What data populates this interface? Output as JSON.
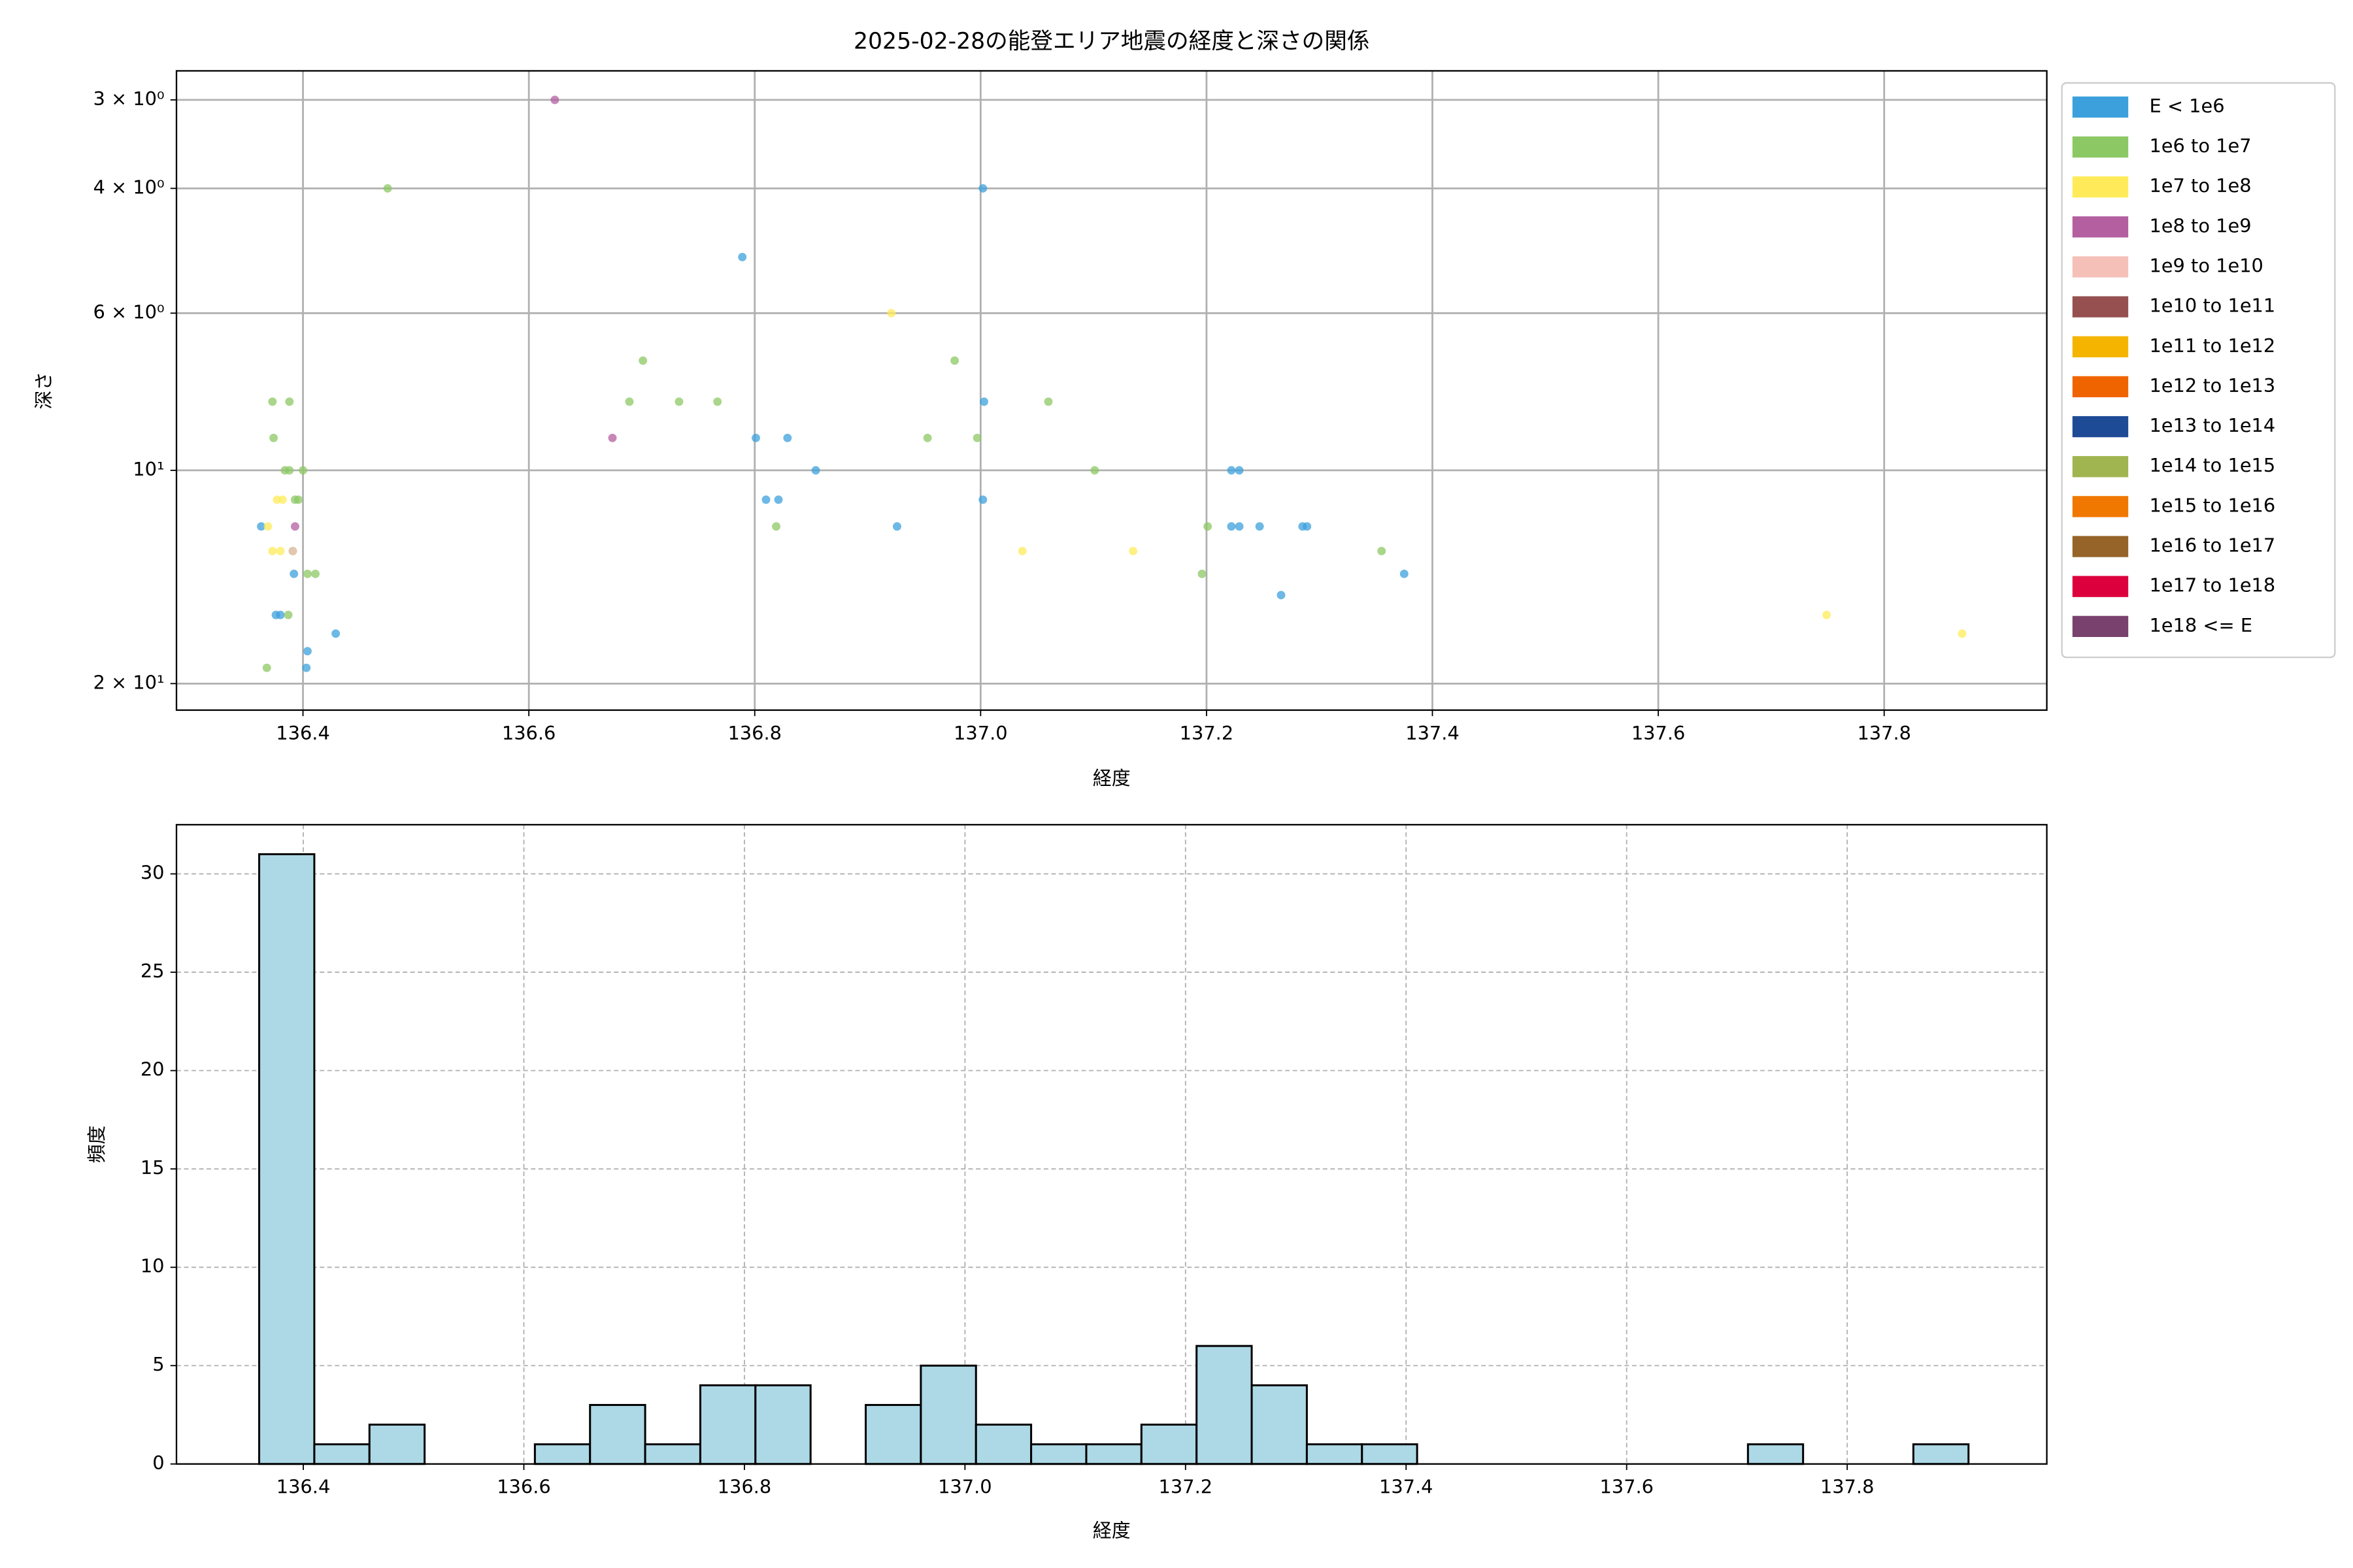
{
  "chart_data": [
    {
      "type": "scatter",
      "title": "2025-02-28の能登エリア地震の経度と深さの関係",
      "xlabel": "経度",
      "ylabel": "深さ",
      "xlim": [
        136.288,
        137.944
      ],
      "xticks": [
        136.4,
        136.6,
        136.8,
        {
          "value": 137,
          "label": "137.0"
        },
        137.2,
        137.4,
        137.6,
        137.8
      ],
      "yscale": "log",
      "ylim": [
        21.8,
        2.73
      ],
      "yticks": [
        {
          "value": 3,
          "label": "3 × 10⁰"
        },
        {
          "value": 4,
          "label": "4 × 10⁰"
        },
        {
          "value": 6,
          "label": "6 × 10⁰"
        },
        {
          "value": 10,
          "label": "10¹"
        },
        {
          "value": 20,
          "label": "2 × 10¹"
        }
      ],
      "grid": true,
      "grid_style": "solid",
      "legend": "outside right",
      "series": [
        {
          "name": "E < 1e6",
          "color": "#3ca0dc",
          "x": [
            136.363,
            136.392,
            136.376,
            136.38,
            136.404,
            136.403,
            136.429,
            136.789,
            136.801,
            136.829,
            136.81,
            136.821,
            136.854,
            136.926,
            137.002,
            137.003,
            137.002,
            137.222,
            137.229,
            137.222,
            137.229,
            137.247,
            137.285,
            137.289,
            137.266,
            137.375
          ],
          "values": [
            12,
            14,
            16,
            16,
            18,
            19,
            17,
            5,
            9,
            9,
            11,
            11,
            10,
            12,
            4,
            8,
            11,
            10,
            10,
            12,
            12,
            12,
            12,
            12,
            15,
            14
          ]
        },
        {
          "name": "1e6 to 1e7",
          "color": "#8cc864",
          "x": [
            136.475,
            136.373,
            136.388,
            136.374,
            136.384,
            136.388,
            136.4,
            136.393,
            136.396,
            136.368,
            136.387,
            136.404,
            136.411,
            136.391,
            136.701,
            136.689,
            136.733,
            136.767,
            136.819,
            136.953,
            136.977,
            136.997,
            137.06,
            137.101,
            137.201,
            137.196,
            137.355
          ],
          "values": [
            4,
            8,
            8,
            9,
            10,
            10,
            10,
            11,
            11,
            19,
            16,
            14,
            14,
            13,
            7,
            8,
            8,
            8,
            12,
            9,
            7,
            9,
            8,
            10,
            12,
            14,
            13
          ]
        },
        {
          "name": "1e7 to 1e8",
          "color": "#ffeb5a",
          "x": [
            136.369,
            136.373,
            136.38,
            136.377,
            136.382,
            136.921,
            137.037,
            137.135,
            137.749,
            137.869
          ],
          "values": [
            12,
            13,
            13,
            11,
            11,
            6,
            13,
            13,
            16,
            17
          ]
        },
        {
          "name": "1e8 to 1e9",
          "color": "#b45fa0",
          "x": [
            136.623,
            136.674,
            136.393
          ],
          "values": [
            3,
            9,
            12
          ]
        },
        {
          "name": "1e9 to 1e10",
          "color": "#f5c0b8",
          "x": [
            136.391
          ],
          "values": [
            13
          ]
        },
        {
          "name": "1e10 to 1e11",
          "color": "#965050",
          "x": [],
          "values": []
        },
        {
          "name": "1e11 to 1e12",
          "color": "#f5b400",
          "x": [],
          "values": []
        },
        {
          "name": "1e12 to 1e13",
          "color": "#f06400",
          "x": [],
          "values": []
        },
        {
          "name": "1e13 to 1e14",
          "color": "#1e4b96",
          "x": [],
          "values": []
        },
        {
          "name": "1e14 to 1e15",
          "color": "#a0b450",
          "x": [],
          "values": []
        },
        {
          "name": "1e15 to 1e16",
          "color": "#f07800",
          "x": [],
          "values": []
        },
        {
          "name": "1e16 to 1e17",
          "color": "#966428",
          "x": [],
          "values": []
        },
        {
          "name": "1e17 to 1e18",
          "color": "#dc003c",
          "x": [],
          "values": []
        },
        {
          "name": "1e18 <= E",
          "color": "#78416e",
          "x": [],
          "values": []
        }
      ]
    },
    {
      "type": "histogram",
      "xlabel": "経度",
      "ylabel": "頻度",
      "color": "#add8e6",
      "edgecolor": "#000000",
      "bins": [
        136.36,
        136.41,
        136.46,
        136.51,
        136.56,
        136.61,
        136.66,
        136.71,
        136.76,
        136.81,
        136.86,
        136.91,
        136.96,
        137.01,
        137.06,
        137.11,
        137.16,
        137.21,
        137.26,
        137.31,
        137.36,
        137.41,
        137.46,
        137.51,
        137.56,
        137.61,
        137.66,
        137.71,
        137.76,
        137.81,
        137.86,
        137.91
      ],
      "values": [
        31,
        1,
        2,
        0,
        0,
        1,
        3,
        1,
        4,
        4,
        0,
        3,
        5,
        2,
        1,
        1,
        2,
        6,
        4,
        1,
        1,
        0,
        0,
        0,
        0,
        0,
        0,
        1,
        0,
        0,
        1
      ],
      "xlim": [
        136.285,
        137.981
      ],
      "xticks": [
        136.4,
        136.6,
        136.8,
        {
          "value": 137,
          "label": "137.0"
        },
        137.2,
        137.4,
        137.6,
        137.8
      ],
      "ylim": [
        0,
        32.5
      ],
      "yticks": [
        0,
        5,
        10,
        15,
        20,
        25,
        30
      ],
      "grid": true,
      "grid_style": "dashed"
    }
  ]
}
